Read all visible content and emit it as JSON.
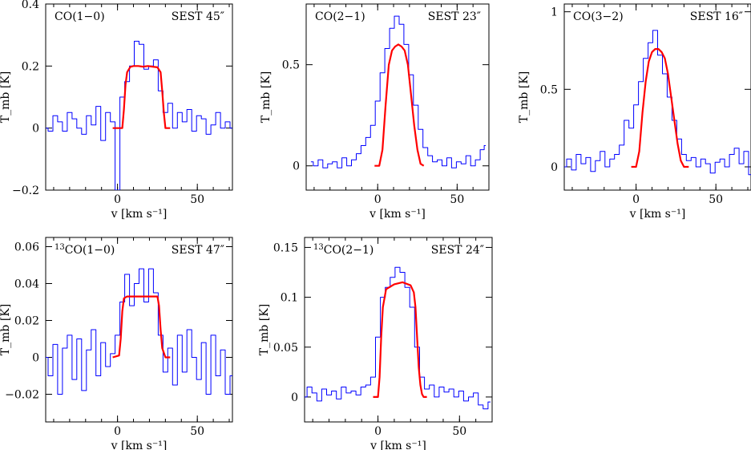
{
  "figure": {
    "background": "#ffffff",
    "observed_color": "#0000ff",
    "model_color": "#ff0000"
  },
  "chart_data": [
    {
      "type": "line",
      "molecule": "CO(1−0)",
      "iso_prefix": "",
      "telescope_label": "SEST 45″",
      "xlabel": "v [km s⁻¹]",
      "ylabel": "T_mb [K]",
      "xlim": [
        -45,
        72
      ],
      "ylim": [
        -0.2,
        0.4
      ],
      "xticks": [
        0,
        50
      ],
      "xtick_labels": [
        "0",
        "50"
      ],
      "yticks": [
        -0.2,
        0,
        0.2,
        0.4
      ],
      "ytick_labels": [
        "−0.2",
        "0",
        "0.2",
        "0.4"
      ],
      "series": [
        {
          "role": "observed",
          "color": "#0000ff",
          "step": true,
          "x": [
            -45,
            -42,
            -39,
            -36,
            -33,
            -30,
            -27,
            -24,
            -21,
            -18,
            -15,
            -12,
            -9,
            -6,
            -3,
            0,
            3,
            6,
            9,
            12,
            15,
            18,
            21,
            24,
            27,
            30,
            33,
            36,
            39,
            42,
            45,
            48,
            51,
            54,
            57,
            60,
            63,
            66,
            69,
            72
          ],
          "y": [
            0.0,
            -0.01,
            0.04,
            0.02,
            -0.01,
            0.05,
            0.03,
            0.0,
            -0.02,
            0.04,
            0.01,
            0.07,
            -0.04,
            0.05,
            0.02,
            -0.2,
            0.1,
            0.15,
            0.2,
            0.28,
            0.27,
            0.19,
            0.2,
            0.22,
            0.12,
            0.05,
            0.08,
            0.0,
            0.05,
            0.02,
            0.06,
            -0.01,
            0.04,
            0.03,
            -0.02,
            0.01,
            0.05,
            0.0,
            0.02,
            0.0
          ]
        },
        {
          "role": "model",
          "color": "#ff0000",
          "step": false,
          "x": [
            -3,
            3,
            4,
            5,
            6,
            8,
            10,
            13,
            16,
            19,
            22,
            25,
            27,
            28,
            29,
            30,
            33
          ],
          "y": [
            0.0,
            0.0,
            0.06,
            0.14,
            0.18,
            0.197,
            0.2,
            0.2,
            0.198,
            0.2,
            0.198,
            0.196,
            0.18,
            0.12,
            0.05,
            0.0,
            0.0
          ]
        }
      ]
    },
    {
      "type": "line",
      "molecule": "CO(2−1)",
      "iso_prefix": "",
      "telescope_label": "SEST 23″",
      "xlabel": "v [km s⁻¹]",
      "ylabel": "T_mb [K]",
      "xlim": [
        -45,
        70
      ],
      "ylim": [
        -0.12,
        0.8
      ],
      "xticks": [
        0,
        50
      ],
      "xtick_labels": [
        "0",
        "50"
      ],
      "yticks": [
        0,
        0.5
      ],
      "ytick_labels": [
        "0",
        "0.5"
      ],
      "series": [
        {
          "role": "observed",
          "color": "#0000ff",
          "step": true,
          "x": [
            -42,
            -39,
            -36,
            -33,
            -30,
            -27,
            -24,
            -21,
            -18,
            -15,
            -12,
            -9,
            -6,
            -3,
            0,
            3,
            6,
            9,
            12,
            15,
            18,
            21,
            24,
            27,
            30,
            33,
            36,
            39,
            42,
            45,
            48,
            51,
            54,
            57,
            60,
            63,
            66,
            68
          ],
          "y": [
            0.02,
            0.0,
            0.03,
            -0.01,
            0.01,
            0.02,
            -0.01,
            0.04,
            0.0,
            0.03,
            0.06,
            0.1,
            0.14,
            0.2,
            0.32,
            0.46,
            0.58,
            0.68,
            0.74,
            0.7,
            0.6,
            0.45,
            0.3,
            0.18,
            0.09,
            0.05,
            0.02,
            0.03,
            0.0,
            0.04,
            -0.01,
            0.02,
            0.01,
            0.05,
            0.0,
            0.03,
            0.08,
            0.1
          ]
        },
        {
          "role": "model",
          "color": "#ff0000",
          "step": false,
          "x": [
            -2,
            1,
            3,
            5,
            7,
            9,
            11,
            13,
            15,
            17,
            19,
            21,
            23,
            25,
            27,
            29
          ],
          "y": [
            0.0,
            0.0,
            0.08,
            0.3,
            0.5,
            0.57,
            0.59,
            0.6,
            0.59,
            0.57,
            0.5,
            0.35,
            0.2,
            0.08,
            0.01,
            0.0
          ]
        }
      ]
    },
    {
      "type": "line",
      "molecule": "CO(3−2)",
      "iso_prefix": "",
      "telescope_label": "SEST 16″",
      "xlabel": "v [km s⁻¹]",
      "ylabel": "T_mb [K]",
      "xlim": [
        -45,
        72
      ],
      "ylim": [
        -0.15,
        1.05
      ],
      "xticks": [
        0,
        50
      ],
      "xtick_labels": [
        "0",
        "50"
      ],
      "yticks": [
        0,
        0.5,
        1
      ],
      "ytick_labels": [
        "0",
        "0.5",
        "1"
      ],
      "series": [
        {
          "role": "observed",
          "color": "#0000ff",
          "step": true,
          "x": [
            -45,
            -42,
            -39,
            -36,
            -33,
            -30,
            -27,
            -24,
            -21,
            -18,
            -15,
            -12,
            -9,
            -6,
            -3,
            0,
            3,
            6,
            9,
            12,
            15,
            18,
            21,
            24,
            27,
            30,
            33,
            36,
            39,
            42,
            45,
            48,
            51,
            54,
            57,
            60,
            63,
            66,
            69,
            72
          ],
          "y": [
            0.0,
            0.05,
            -0.02,
            0.08,
            0.02,
            0.06,
            -0.03,
            0.04,
            0.1,
            0.0,
            0.05,
            0.08,
            0.14,
            0.3,
            0.25,
            0.4,
            0.55,
            0.7,
            0.8,
            0.88,
            0.72,
            0.6,
            0.45,
            0.3,
            0.18,
            0.08,
            0.04,
            0.06,
            0.0,
            0.05,
            0.02,
            -0.04,
            0.03,
            0.05,
            0.0,
            0.08,
            0.12,
            0.02,
            0.1,
            -0.05
          ]
        },
        {
          "role": "model",
          "color": "#ff0000",
          "step": false,
          "x": [
            -3,
            0,
            2,
            4,
            6,
            8,
            10,
            12,
            14,
            16,
            18,
            20,
            22,
            24,
            26,
            28,
            30,
            33
          ],
          "y": [
            0.0,
            0.0,
            0.1,
            0.35,
            0.55,
            0.68,
            0.74,
            0.76,
            0.76,
            0.74,
            0.7,
            0.6,
            0.45,
            0.3,
            0.15,
            0.04,
            0.0,
            0.0
          ]
        }
      ]
    },
    {
      "type": "line",
      "molecule": "CO(1−0)",
      "iso_prefix": "13",
      "telescope_label": "SEST 47″",
      "xlabel": "v [km s⁻¹]",
      "ylabel": "T_mb [K]",
      "xlim": [
        -45,
        72
      ],
      "ylim": [
        -0.035,
        0.065
      ],
      "xticks": [
        0,
        50
      ],
      "xtick_labels": [
        "0",
        "50"
      ],
      "yticks": [
        -0.02,
        0,
        0.02,
        0.04,
        0.06
      ],
      "ytick_labels": [
        "−0.02",
        "0",
        "0.02",
        "0.04",
        "0.06"
      ],
      "series": [
        {
          "role": "observed",
          "color": "#0000ff",
          "step": true,
          "x": [
            -45,
            -42,
            -39,
            -36,
            -33,
            -30,
            -27,
            -24,
            -21,
            -18,
            -15,
            -12,
            -9,
            -6,
            -3,
            0,
            3,
            6,
            9,
            12,
            15,
            18,
            21,
            24,
            27,
            30,
            33,
            36,
            39,
            42,
            45,
            48,
            51,
            54,
            57,
            60,
            63,
            66,
            69,
            72
          ],
          "y": [
            0.0,
            -0.01,
            0.007,
            -0.02,
            0.005,
            0.012,
            -0.012,
            0.01,
            -0.018,
            0.004,
            0.015,
            -0.01,
            0.008,
            -0.005,
            0.002,
            0.012,
            0.03,
            0.045,
            0.028,
            0.04,
            0.048,
            0.03,
            0.048,
            0.035,
            0.012,
            -0.008,
            0.005,
            -0.015,
            0.012,
            -0.008,
            0.015,
            0.0,
            -0.012,
            0.008,
            -0.02,
            0.012,
            -0.01,
            0.004,
            -0.02,
            -0.01
          ]
        },
        {
          "role": "model",
          "color": "#ff0000",
          "step": false,
          "x": [
            -3,
            1,
            2,
            3,
            4,
            6,
            10,
            15,
            20,
            25,
            26,
            27,
            28,
            30,
            33
          ],
          "y": [
            0.0,
            0.001,
            0.01,
            0.025,
            0.032,
            0.033,
            0.033,
            0.033,
            0.033,
            0.033,
            0.028,
            0.015,
            0.005,
            0.0,
            0.0
          ]
        }
      ]
    },
    {
      "type": "line",
      "molecule": "CO(2−1)",
      "iso_prefix": "13",
      "telescope_label": "SEST 24″",
      "xlabel": "v [km s⁻¹]",
      "ylabel": "T_mb [K]",
      "xlim": [
        -45,
        70
      ],
      "ylim": [
        -0.025,
        0.16
      ],
      "xticks": [
        0,
        50
      ],
      "xtick_labels": [
        "0",
        "50"
      ],
      "yticks": [
        0,
        0.05,
        0.1,
        0.15
      ],
      "ytick_labels": [
        "0",
        "0.05",
        "0.1",
        "0.15"
      ],
      "series": [
        {
          "role": "observed",
          "color": "#0000ff",
          "step": true,
          "x": [
            -45,
            -42,
            -39,
            -36,
            -33,
            -30,
            -27,
            -24,
            -21,
            -18,
            -15,
            -12,
            -9,
            -6,
            -3,
            0,
            3,
            6,
            9,
            12,
            15,
            18,
            21,
            24,
            27,
            30,
            33,
            36,
            39,
            42,
            45,
            48,
            51,
            54,
            57,
            60,
            63,
            66,
            69
          ],
          "y": [
            0.0,
            0.01,
            0.004,
            -0.004,
            0.008,
            0.002,
            0.006,
            -0.002,
            0.01,
            0.004,
            0.006,
            0.002,
            0.01,
            0.012,
            0.02,
            0.06,
            0.1,
            0.11,
            0.12,
            0.13,
            0.125,
            0.11,
            0.09,
            0.05,
            0.02,
            0.008,
            0.012,
            0.0,
            0.01,
            0.005,
            0.008,
            0.0,
            0.006,
            -0.004,
            0.0,
            0.004,
            -0.008,
            -0.012,
            -0.005
          ]
        },
        {
          "role": "model",
          "color": "#ff0000",
          "step": false,
          "x": [
            -3,
            0,
            1,
            2,
            3,
            5,
            10,
            15,
            20,
            22,
            23,
            24,
            25,
            26,
            27,
            28,
            30
          ],
          "y": [
            0.0,
            0.0,
            0.02,
            0.06,
            0.09,
            0.108,
            0.113,
            0.115,
            0.112,
            0.105,
            0.09,
            0.06,
            0.03,
            0.012,
            0.003,
            0.0,
            0.0
          ]
        }
      ]
    }
  ]
}
